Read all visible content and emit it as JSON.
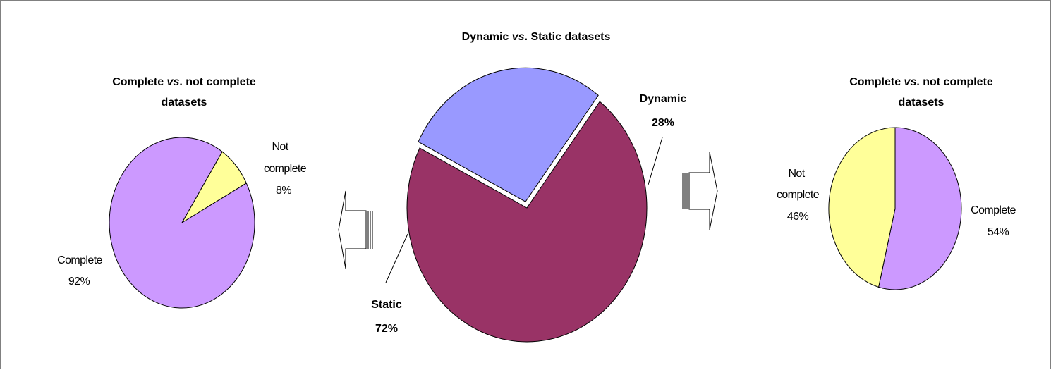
{
  "chart_data": [
    {
      "type": "pie",
      "title": "Dynamic vs. Static datasets",
      "title_parts": [
        "Dynamic ",
        "vs",
        ". Static datasets"
      ],
      "categories": [
        "Static",
        "Dynamic"
      ],
      "values": [
        72,
        28
      ],
      "value_labels": [
        "72%",
        "28%"
      ],
      "colors": [
        "#993366",
        "#9999ff"
      ],
      "exploded": "Dynamic"
    },
    {
      "type": "pie",
      "title": "Complete vs. not complete datasets",
      "title_line1_parts": [
        "Complete ",
        "vs",
        ". not complete"
      ],
      "title_line2": "datasets",
      "categories": [
        "Complete",
        "Not complete"
      ],
      "category_lines": [
        [
          "Complete"
        ],
        [
          "Not",
          "complete"
        ]
      ],
      "values": [
        92,
        8
      ],
      "value_labels": [
        "92%",
        "8%"
      ],
      "colors": [
        "#cc99ff",
        "#ffff99"
      ],
      "relates_to": "Static"
    },
    {
      "type": "pie",
      "title": "Complete vs. not complete datasets",
      "title_line1_parts": [
        "Complete ",
        "vs",
        ". not complete"
      ],
      "title_line2": "datasets",
      "categories": [
        "Complete",
        "Not complete"
      ],
      "category_lines": [
        [
          "Complete"
        ],
        [
          "Not",
          "complete"
        ]
      ],
      "values": [
        54,
        46
      ],
      "value_labels": [
        "54%",
        "46%"
      ],
      "colors": [
        "#cc99ff",
        "#ffff99"
      ],
      "relates_to": "Dynamic"
    }
  ],
  "arrows": {
    "left": "arrow-left-icon",
    "right": "arrow-right-icon"
  }
}
